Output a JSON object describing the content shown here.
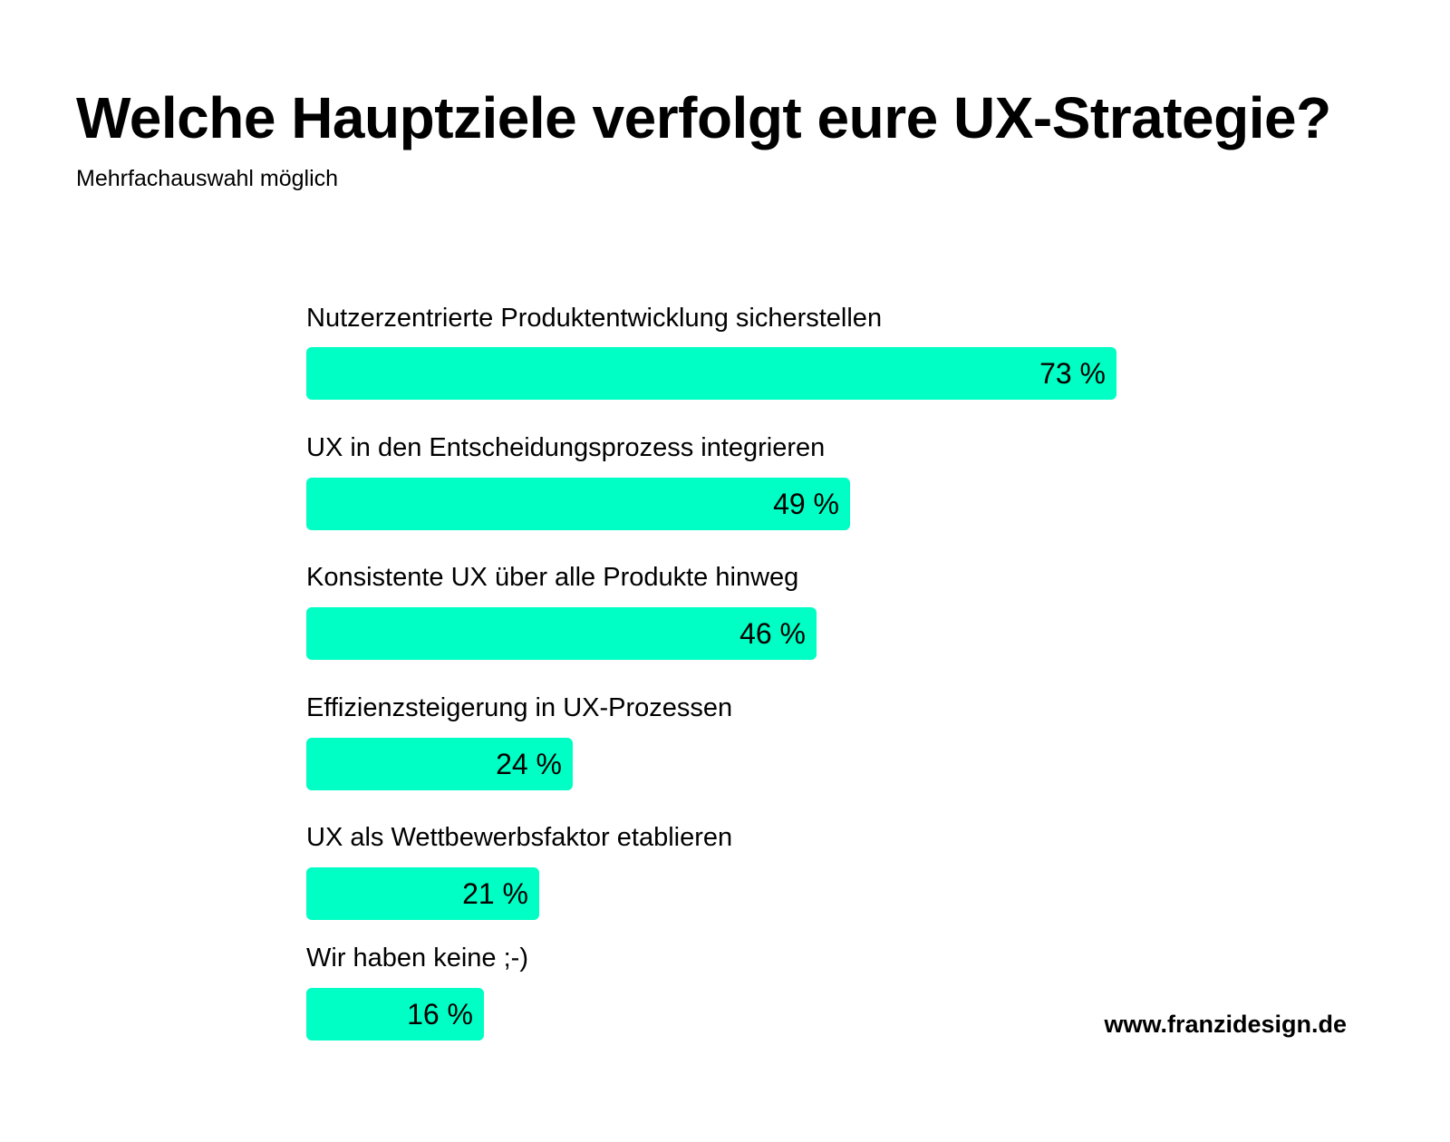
{
  "chart_data": {
    "type": "bar",
    "orientation": "horizontal",
    "title": "Welche Hauptziele verfolgt eure UX-Strategie?",
    "subtitle": "Mehrfachauswahl möglich",
    "categories": [
      "Nutzerzentrierte Produktentwicklung sicherstellen",
      "UX in den Entscheidungsprozess integrieren",
      "Konsistente UX über alle Produkte hinweg",
      "Effizienzsteigerung in UX-Prozessen",
      "UX als Wettbewerbsfaktor etablieren",
      "Wir haben keine ;-)"
    ],
    "values": [
      73,
      49,
      46,
      24,
      21,
      16
    ],
    "value_labels": [
      "73 %",
      "49 %",
      "46 %",
      "24 %",
      "21 %",
      "16 %"
    ],
    "unit": "%",
    "bar_color": "#00FFC4",
    "grid": false,
    "legend": "none"
  },
  "footer": {
    "source": "www.franzidesign.de"
  }
}
